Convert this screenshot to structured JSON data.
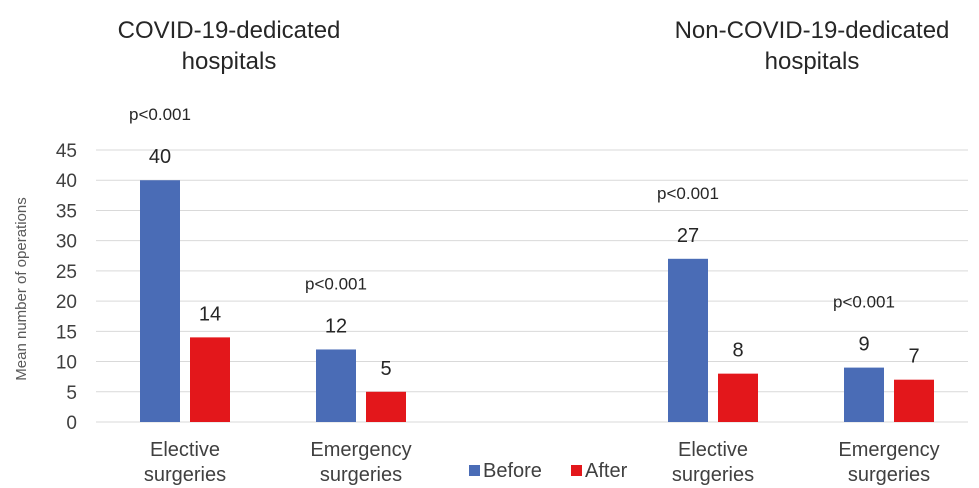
{
  "chart_data": {
    "type": "bar",
    "ylabel": "Mean number of operations",
    "ylim": [
      0,
      45
    ],
    "yticks": [
      0,
      5,
      10,
      15,
      20,
      25,
      30,
      35,
      40,
      45
    ],
    "grid": true,
    "legend": {
      "placement": "bottom-center",
      "entries": [
        "Before",
        "After"
      ]
    },
    "colors": {
      "Before": "#4a6cb6",
      "After": "#e3171b"
    },
    "groups": [
      {
        "title": [
          "COVID-19-dedicated",
          "hospitals"
        ],
        "categories": [
          {
            "label": [
              "Elective",
              "surgeries"
            ],
            "before": 40,
            "after": 14,
            "p_value": "p<0.001"
          },
          {
            "label": [
              "Emergency",
              "surgeries"
            ],
            "before": 12,
            "after": 5,
            "p_value": "p<0.001"
          }
        ]
      },
      {
        "title": [
          "Non-COVID-19-dedicated",
          "hospitals"
        ],
        "categories": [
          {
            "label": [
              "Elective",
              "surgeries"
            ],
            "before": 27,
            "after": 8,
            "p_value": "p<0.001"
          },
          {
            "label": [
              "Emergency",
              "surgeries"
            ],
            "before": 9,
            "after": 7,
            "p_value": "p<0.001"
          }
        ]
      }
    ],
    "series": [
      {
        "name": "Before",
        "values": [
          40,
          12,
          27,
          9
        ]
      },
      {
        "name": "After",
        "values": [
          14,
          5,
          8,
          7
        ]
      }
    ]
  }
}
